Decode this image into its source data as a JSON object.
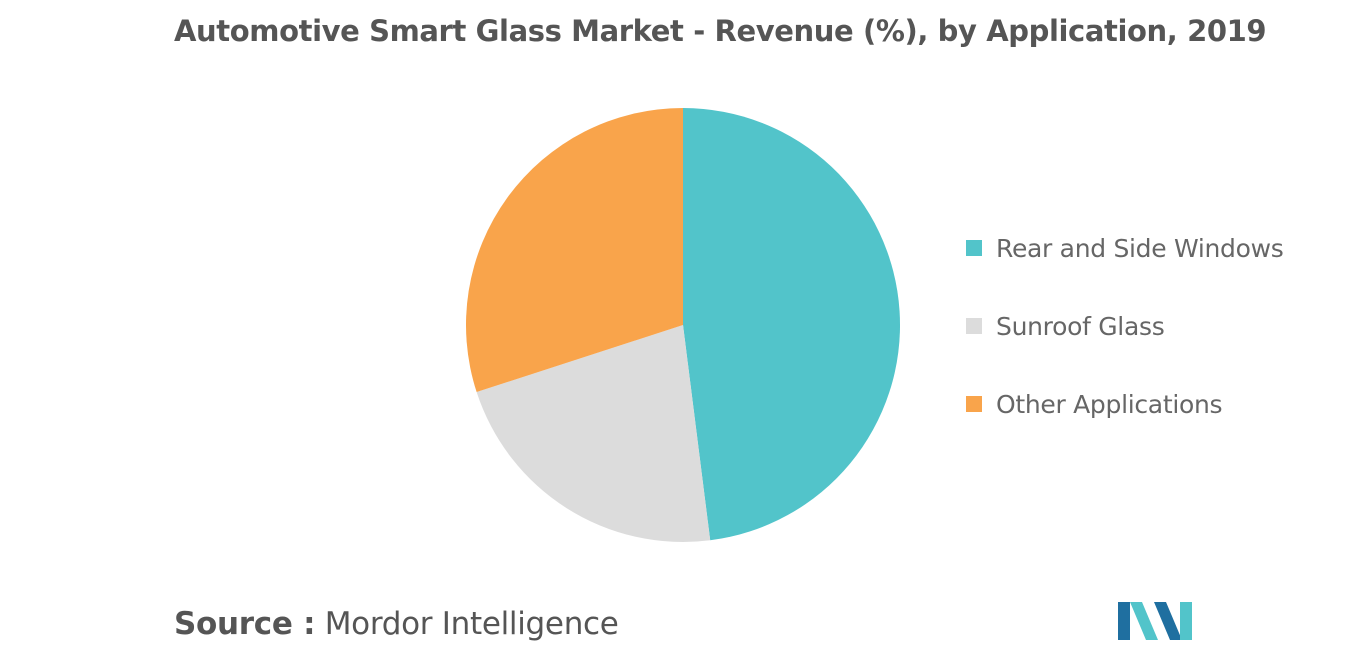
{
  "title": "Automotive Smart Glass Market - Revenue (%), by Application, 2019",
  "source": {
    "label": "Source :",
    "name": "Mordor Intelligence"
  },
  "colors": {
    "rear_side": "#52c4ca",
    "sunroof": "#dcdcdc",
    "other": "#f9a44b",
    "logo_dark": "#1f6fa0",
    "logo_light": "#52c4ca"
  },
  "chart_data": {
    "type": "pie",
    "title": "Automotive Smart Glass Market - Revenue (%), by Application, 2019",
    "start_angle_deg": 0,
    "direction": "clockwise",
    "legend_position": "right",
    "slices": [
      {
        "label": "Rear and Side Windows",
        "value": 48,
        "color": "#52c4ca"
      },
      {
        "label": "Sunroof Glass",
        "value": 22,
        "color": "#dcdcdc"
      },
      {
        "label": "Other Applications",
        "value": 30,
        "color": "#f9a44b"
      }
    ]
  }
}
